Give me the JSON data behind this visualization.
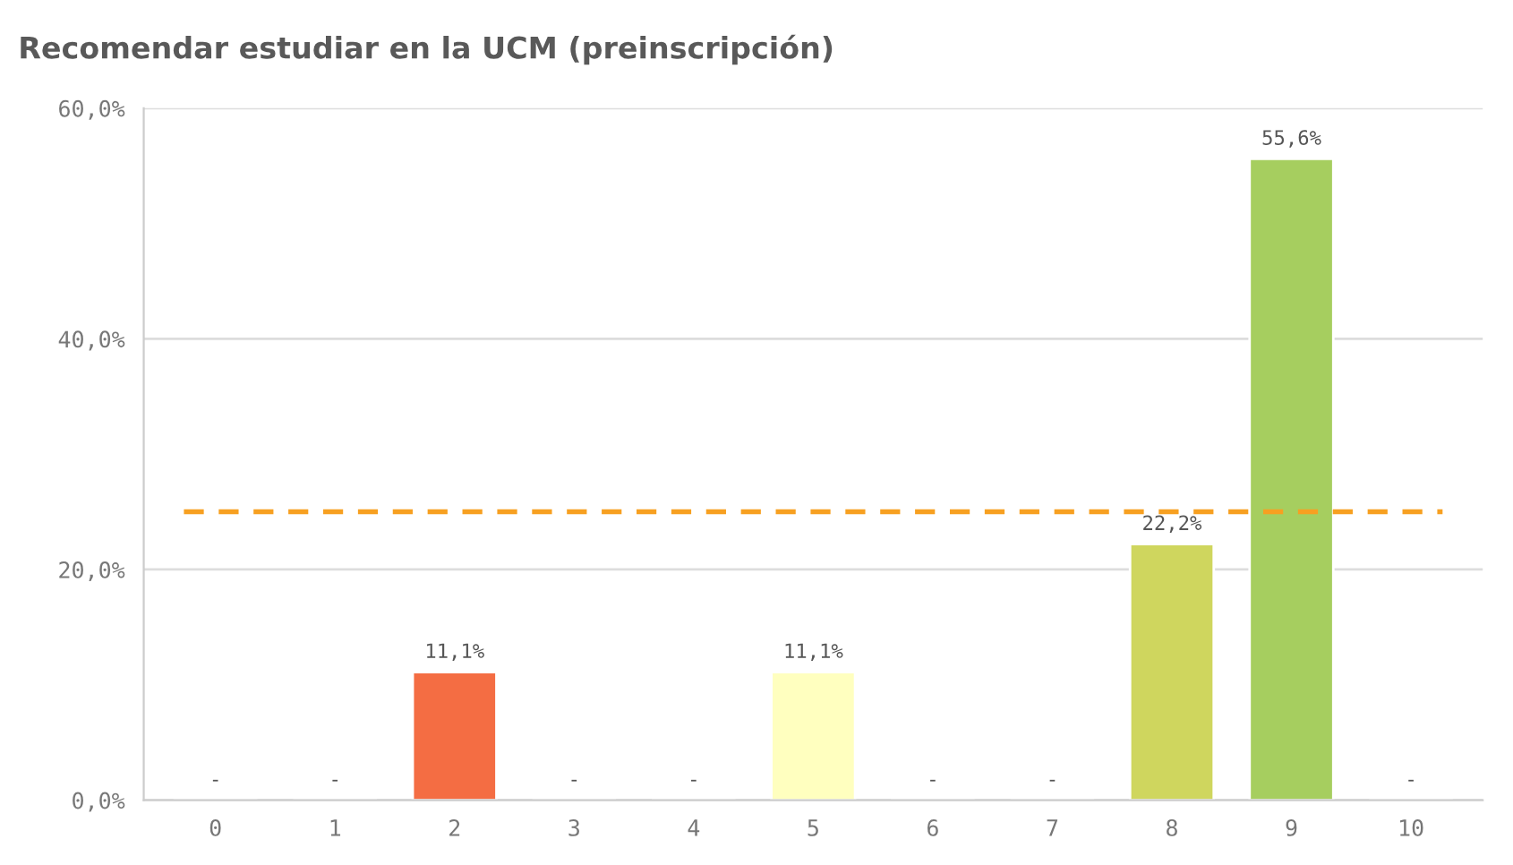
{
  "chart_data": {
    "type": "bar",
    "title": "Recomendar estudiar en la UCM (preinscripción)",
    "categories": [
      "0",
      "1",
      "2",
      "3",
      "4",
      "5",
      "6",
      "7",
      "8",
      "9",
      "10"
    ],
    "values": [
      0,
      0,
      11.1,
      0,
      0,
      11.1,
      0,
      0,
      22.2,
      55.6,
      0
    ],
    "colors": [
      null,
      null,
      "#f46d43",
      null,
      null,
      "#ffffbf",
      null,
      null,
      "#cfd65e",
      "#a6ce5f",
      null
    ],
    "value_labels": [
      "-",
      "-",
      "11,1%",
      "-",
      "-",
      "11,1%",
      "-",
      "-",
      "22,2%",
      "55,6%",
      "-"
    ],
    "ylim": [
      0,
      60
    ],
    "yticks": [
      {
        "value": 0,
        "label": "0,0%"
      },
      {
        "value": 20,
        "label": "20,0%"
      },
      {
        "value": 40,
        "label": "40,0%"
      },
      {
        "value": 60,
        "label": "60,0%"
      }
    ],
    "grid": "y",
    "ref_lines": [
      {
        "axis": "y",
        "value": 25,
        "color": "#f7a021",
        "line_style": "dashed"
      }
    ]
  }
}
